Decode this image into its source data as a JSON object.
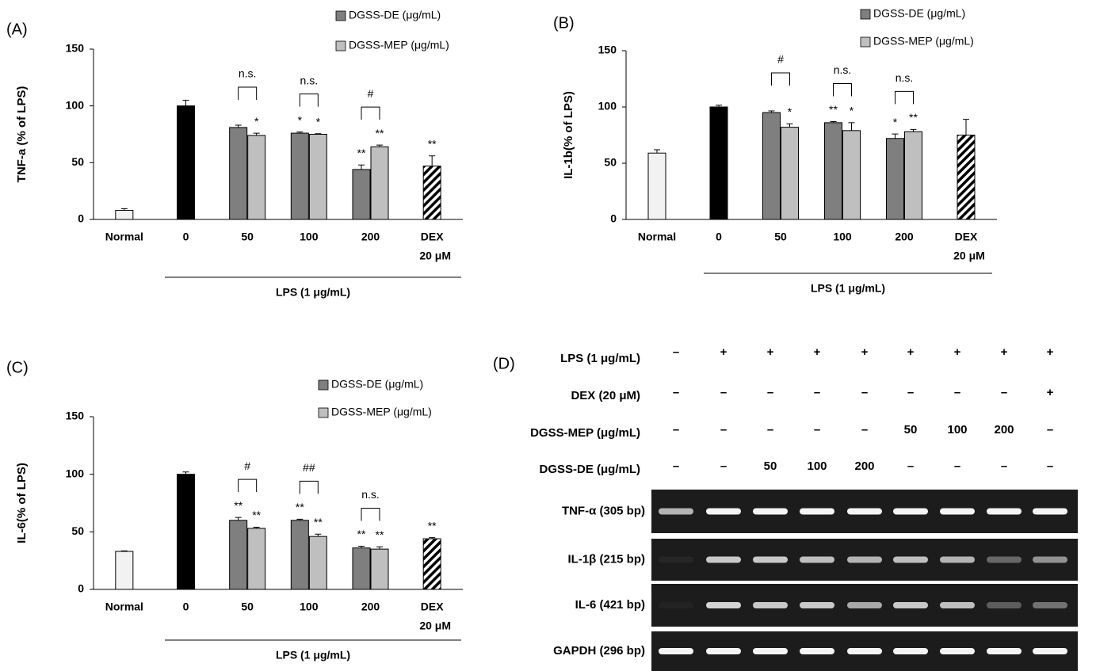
{
  "chart_data": [
    {
      "type": "bar",
      "panel": "(A)",
      "y_label": "TNF-a (% of LPS)",
      "x_label": "LPS (1 μg/mL)",
      "categories": [
        "Normal",
        "0",
        "50",
        "100",
        "200",
        "DEX"
      ],
      "dex_dose": "20 μM",
      "values": [
        8,
        100,
        null,
        null,
        null,
        47
      ],
      "errors": [
        1.5,
        5,
        null,
        null,
        null,
        9
      ],
      "bar_colors": [
        "#f2f2f2",
        "#000000",
        null,
        null,
        null,
        "#ffffff"
      ],
      "hatched_category": 5,
      "value_annotations": [
        null,
        null,
        null,
        null,
        null,
        "**"
      ],
      "series": [
        {
          "name": "DGSS-DE (μg/mL)",
          "color": "#7f7f7f",
          "values": [
            null,
            null,
            81,
            76,
            44,
            null
          ],
          "errors": [
            null,
            null,
            2,
            1,
            4,
            null
          ],
          "annotations": [
            null,
            null,
            null,
            "*",
            "**",
            null
          ]
        },
        {
          "name": "DGSS-MEP (μg/mL)",
          "color": "#bfbfbf",
          "values": [
            null,
            null,
            74,
            75,
            64,
            null
          ],
          "errors": [
            null,
            null,
            2,
            0.5,
            1.5,
            null
          ],
          "annotations": [
            null,
            null,
            "*",
            "*",
            "**",
            null
          ]
        }
      ],
      "comparisons": [
        null,
        null,
        "n.s.",
        "n.s.",
        "#",
        null
      ],
      "ylim": [
        0,
        150
      ],
      "yticks": [
        0,
        50,
        100,
        150
      ]
    },
    {
      "type": "bar",
      "panel": "(B)",
      "y_label": "IL-1b(% of LPS)",
      "x_label": "LPS (1 μg/mL)",
      "categories": [
        "Normal",
        "0",
        "50",
        "100",
        "200",
        "DEX"
      ],
      "dex_dose": "20 μM",
      "values": [
        59,
        100,
        null,
        null,
        null,
        75
      ],
      "errors": [
        3,
        1.5,
        null,
        null,
        null,
        14
      ],
      "bar_colors": [
        "#f2f2f2",
        "#000000",
        null,
        null,
        null,
        "#ffffff"
      ],
      "hatched_category": 5,
      "value_annotations": [
        null,
        null,
        null,
        null,
        null,
        null
      ],
      "series": [
        {
          "name": "DGSS-DE (μg/mL)",
          "color": "#7f7f7f",
          "values": [
            null,
            null,
            95,
            86,
            72,
            null
          ],
          "errors": [
            null,
            null,
            1.5,
            1,
            4,
            null
          ],
          "annotations": [
            null,
            null,
            null,
            "**",
            "*",
            null
          ]
        },
        {
          "name": "DGSS-MEP (μg/mL)",
          "color": "#bfbfbf",
          "values": [
            null,
            null,
            82,
            79,
            78,
            null
          ],
          "errors": [
            null,
            null,
            3,
            7,
            2,
            null
          ],
          "annotations": [
            null,
            null,
            "*",
            "*",
            "**",
            null
          ]
        }
      ],
      "comparisons": [
        null,
        null,
        "#",
        "n.s.",
        "n.s.",
        null
      ],
      "ylim": [
        0,
        150
      ],
      "yticks": [
        0,
        50,
        100,
        150
      ]
    },
    {
      "type": "bar",
      "panel": "(C)",
      "y_label": "IL-6(% of LPS)",
      "x_label": "LPS (1 μg/mL)",
      "categories": [
        "Normal",
        "0",
        "50",
        "100",
        "200",
        "DEX"
      ],
      "dex_dose": "20 μM",
      "values": [
        33,
        100,
        null,
        null,
        null,
        44
      ],
      "errors": [
        0.5,
        2,
        null,
        null,
        null,
        1
      ],
      "bar_colors": [
        "#f2f2f2",
        "#000000",
        null,
        null,
        null,
        "#ffffff"
      ],
      "hatched_category": 5,
      "value_annotations": [
        null,
        null,
        null,
        null,
        null,
        "**"
      ],
      "series": [
        {
          "name": "DGSS-DE (μg/mL)",
          "color": "#7f7f7f",
          "values": [
            null,
            null,
            60,
            60,
            36,
            null
          ],
          "errors": [
            null,
            null,
            2.5,
            1,
            1.5,
            null
          ],
          "annotations": [
            null,
            null,
            "**",
            "**",
            "**",
            null
          ]
        },
        {
          "name": "DGSS-MEP (μg/mL)",
          "color": "#bfbfbf",
          "values": [
            null,
            null,
            53,
            46,
            35,
            null
          ],
          "errors": [
            null,
            null,
            1,
            2,
            2,
            null
          ],
          "annotations": [
            null,
            null,
            "**",
            "**",
            "**",
            null
          ]
        }
      ],
      "comparisons": [
        null,
        null,
        "#",
        "##",
        "n.s.",
        null
      ],
      "ylim": [
        0,
        150
      ],
      "yticks": [
        0,
        50,
        100,
        150
      ]
    }
  ],
  "gel": {
    "panel": "(D)",
    "conditions": [
      {
        "label": "LPS (1  μg/mL)",
        "lanes": [
          "–",
          "+",
          "+",
          "+",
          "+",
          "+",
          "+",
          "+",
          "+"
        ]
      },
      {
        "label": "DEX (20  μM)",
        "lanes": [
          "–",
          "–",
          "–",
          "–",
          "–",
          "–",
          "–",
          "–",
          "+"
        ]
      },
      {
        "label": "DGSS-MEP (μg/mL)",
        "lanes": [
          "–",
          "–",
          "–",
          "–",
          "–",
          "50",
          "100",
          "200",
          "–"
        ]
      },
      {
        "label": "DGSS-DE (μg/mL)",
        "lanes": [
          "–",
          "–",
          "50",
          "100",
          "200",
          "–",
          "–",
          "–",
          "–"
        ]
      }
    ],
    "bands": [
      "TNF-α (305 bp)",
      "IL-1β (215 bp)",
      "IL-6 (421 bp)",
      "GAPDH (296 bp)"
    ]
  }
}
